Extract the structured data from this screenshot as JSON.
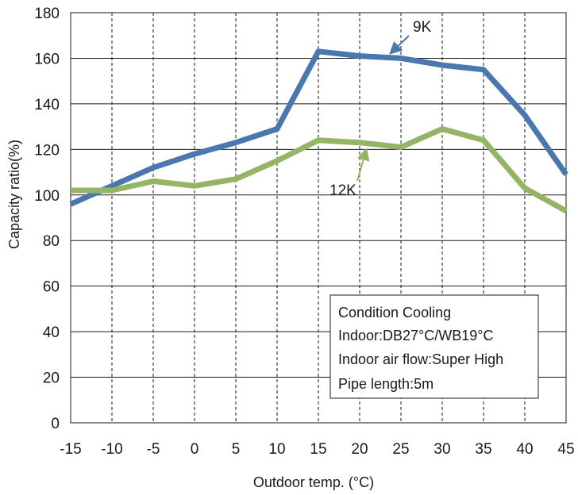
{
  "chart_data": {
    "type": "line",
    "title": "",
    "xlabel": "Outdoor temp. (°C)",
    "ylabel": "Capacity ratio(%)",
    "x": [
      -15,
      -10,
      -5,
      0,
      5,
      10,
      15,
      20,
      25,
      30,
      35,
      40,
      45
    ],
    "xlim": [
      -15,
      45
    ],
    "ylim": [
      0,
      180
    ],
    "x_ticks": [
      "-15",
      "-10",
      "-5",
      "0",
      "5",
      "10",
      "15",
      "20",
      "25",
      "30",
      "35",
      "40",
      "45"
    ],
    "y_ticks": [
      "0",
      "20",
      "40",
      "60",
      "80",
      "100",
      "120",
      "140",
      "160",
      "180"
    ],
    "grid": {
      "x": "dashed",
      "y": "solid"
    },
    "series": [
      {
        "name": "9K",
        "color": "#4a77ae",
        "values": [
          96,
          104,
          112,
          118,
          123,
          129,
          163,
          161,
          160,
          157,
          155,
          135,
          109
        ]
      },
      {
        "name": "12K",
        "color": "#95b566",
        "values": [
          102,
          102,
          106,
          104,
          107,
          115,
          124,
          123,
          121,
          129,
          124,
          103,
          93
        ]
      }
    ],
    "annotations": {
      "label_9k": "9K",
      "label_12k": "12K"
    },
    "notes": [
      "Condition Cooling",
      "Indoor:DB27°C/WB19°C",
      "Indoor air flow:Super High",
      "Pipe length:5m"
    ]
  }
}
